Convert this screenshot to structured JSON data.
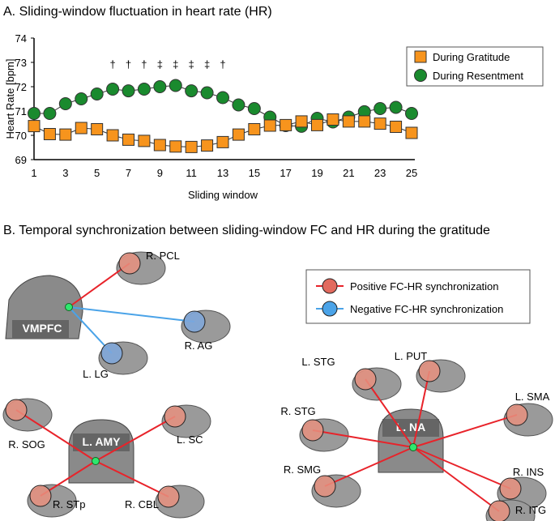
{
  "panel_a": {
    "title": "A. Sliding-window fluctuation in heart rate (HR)"
  },
  "panel_b": {
    "title": "B. Temporal synchronization between sliding-window FC and HR during the gratitude"
  },
  "chart_data": {
    "type": "line",
    "title": "A. Sliding-window fluctuation in heart rate (HR)",
    "xlabel": "Sliding window",
    "ylabel": "Heart Rate [bpm]",
    "x": [
      1,
      2,
      3,
      4,
      5,
      6,
      7,
      8,
      9,
      10,
      11,
      12,
      13,
      14,
      15,
      16,
      17,
      18,
      19,
      20,
      21,
      22,
      23,
      24,
      25
    ],
    "xticks": [
      "1",
      "3",
      "5",
      "7",
      "9",
      "11",
      "13",
      "15",
      "17",
      "19",
      "21",
      "23",
      "25"
    ],
    "yticks": [
      "69",
      "70",
      "71",
      "72",
      "73",
      "74"
    ],
    "ylim": [
      69,
      74
    ],
    "xlim": [
      1,
      25
    ],
    "grid": false,
    "legend_position": "top-right",
    "series": [
      {
        "name": "During Gratitude",
        "marker": "square",
        "color": "#f7941d",
        "values": [
          70.38,
          70.05,
          70.03,
          70.3,
          70.25,
          70.0,
          69.82,
          69.77,
          69.6,
          69.54,
          69.52,
          69.58,
          69.72,
          70.03,
          70.25,
          70.4,
          70.42,
          70.57,
          70.42,
          70.65,
          70.57,
          70.57,
          70.48,
          70.35,
          70.1
        ]
      },
      {
        "name": "During Resentment",
        "marker": "circle",
        "color": "#1a8a2e",
        "values": [
          70.9,
          70.9,
          71.3,
          71.5,
          71.7,
          71.9,
          71.83,
          71.9,
          72.0,
          72.05,
          71.83,
          71.75,
          71.55,
          71.25,
          71.1,
          70.75,
          70.4,
          70.37,
          70.7,
          70.55,
          70.75,
          70.97,
          71.1,
          71.15,
          70.9
        ]
      }
    ],
    "annotations": [
      {
        "x": 6,
        "text": "†"
      },
      {
        "x": 7,
        "text": "†"
      },
      {
        "x": 8,
        "text": "†"
      },
      {
        "x": 9,
        "text": "‡"
      },
      {
        "x": 10,
        "text": "‡"
      },
      {
        "x": 11,
        "text": "‡"
      },
      {
        "x": 12,
        "text": "‡"
      },
      {
        "x": 13,
        "text": "†"
      }
    ]
  },
  "network_legend": {
    "positive": "Positive FC-HR synchronization",
    "negative": "Negative FC-HR synchronization",
    "positive_color": "#e8232a",
    "negative_color": "#4aa3e8"
  },
  "networks": [
    {
      "seed": "VMPFC",
      "targets": [
        {
          "label": "R. PCL",
          "sign": "positive"
        },
        {
          "label": "R. AG",
          "sign": "negative"
        },
        {
          "label": "L. LG",
          "sign": "negative"
        }
      ]
    },
    {
      "seed": "L. AMY",
      "targets": [
        {
          "label": "R. SOG",
          "sign": "positive"
        },
        {
          "label": "L. SC",
          "sign": "positive"
        },
        {
          "label": "R. STp",
          "sign": "positive"
        },
        {
          "label": "R. CBL",
          "sign": "positive"
        }
      ]
    },
    {
      "seed": "L. NA",
      "targets": [
        {
          "label": "L. STG",
          "sign": "positive"
        },
        {
          "label": "L. PUT",
          "sign": "positive"
        },
        {
          "label": "L. SMA",
          "sign": "positive"
        },
        {
          "label": "R. STG",
          "sign": "positive"
        },
        {
          "label": "R. SMG",
          "sign": "positive"
        },
        {
          "label": "R. INS",
          "sign": "positive"
        },
        {
          "label": "R. ITG",
          "sign": "positive"
        }
      ]
    }
  ]
}
